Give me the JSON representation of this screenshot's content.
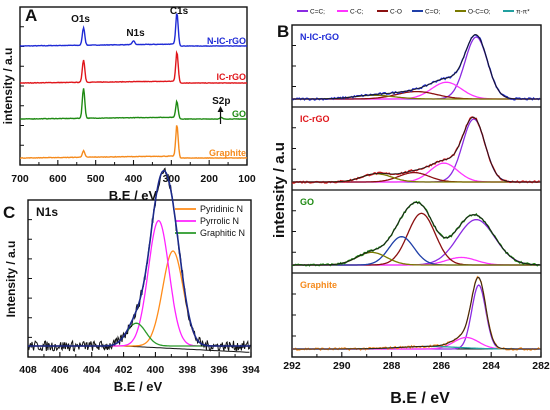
{
  "colors": {
    "N-IC-rGO": "#1f2bd6",
    "IC-rGO": "#e0161b",
    "GO": "#1e8a12",
    "Graphite": "#f58a1c",
    "C=C": "#8a2be2",
    "C-C": "#ff34ff",
    "C-O": "#8b1010",
    "C=O": "#1f3fa8",
    "O-C=O": "#7a7a00",
    "pi": "#22a0a0",
    "Pyridinic N": "#ff8c1a",
    "Pyrrolic N": "#ff22ff",
    "Graphitic N": "#2a9a2a"
  },
  "chart_data": [
    {
      "panel": "A",
      "type": "line",
      "panel_label": "A",
      "xlabel": "B.E / eV",
      "ylabel": "intensity / a.u",
      "xlim": [
        700,
        100
      ],
      "x_ticks": [
        "700",
        "600",
        "500",
        "400",
        "300",
        "200",
        "100"
      ],
      "annotations": [
        "O1s",
        "N1s",
        "C1s",
        "S2p"
      ],
      "series": [
        {
          "name": "N-IC-rGO",
          "peaks": [
            {
              "x": 532,
              "h": 0.55
            },
            {
              "x": 400,
              "h": 0.12
            },
            {
              "x": 285,
              "h": 1.0
            }
          ]
        },
        {
          "name": "IC-rGO",
          "peaks": [
            {
              "x": 532,
              "h": 0.75
            },
            {
              "x": 285,
              "h": 1.0
            }
          ]
        },
        {
          "name": "GO",
          "peaks": [
            {
              "x": 532,
              "h": 1.0
            },
            {
              "x": 285,
              "h": 0.55
            },
            {
              "x": 168,
              "h": 0.05
            }
          ]
        },
        {
          "name": "Graphite",
          "peaks": [
            {
              "x": 532,
              "h": 0.2
            },
            {
              "x": 285,
              "h": 1.0
            }
          ]
        }
      ]
    },
    {
      "panel": "B",
      "type": "line",
      "panel_label": "B",
      "xlabel": "B.E / eV",
      "ylabel": "intensity / a.u",
      "xlim": [
        292,
        282
      ],
      "x_ticks": [
        "292",
        "290",
        "288",
        "286",
        "284",
        "282"
      ],
      "legend": [
        "C=C;",
        "C-C;",
        "C-O",
        "C=O;",
        "O-C=O;",
        "π-π*"
      ],
      "legend_position": "top",
      "subplots": [
        {
          "name": "N-IC-rGO",
          "components": [
            {
              "name": "C=C",
              "center": 284.6,
              "height": 1.0,
              "width": 0.45
            },
            {
              "name": "C-C",
              "center": 285.8,
              "height": 0.27,
              "width": 0.6
            },
            {
              "name": "C-O",
              "center": 287.0,
              "height": 0.12,
              "width": 0.8
            },
            {
              "name": "O-C=O",
              "center": 288.7,
              "height": 0.06,
              "width": 0.8
            }
          ]
        },
        {
          "name": "IC-rGO",
          "components": [
            {
              "name": "C=C",
              "center": 284.7,
              "height": 1.0,
              "width": 0.45
            },
            {
              "name": "C-C",
              "center": 285.9,
              "height": 0.3,
              "width": 0.55
            },
            {
              "name": "C-O",
              "center": 287.1,
              "height": 0.15,
              "width": 0.6
            },
            {
              "name": "O-C=O",
              "center": 288.6,
              "height": 0.13,
              "width": 0.6
            }
          ]
        },
        {
          "name": "GO",
          "components": [
            {
              "name": "C=C",
              "center": 284.6,
              "height": 0.72,
              "width": 0.75
            },
            {
              "name": "C-C",
              "center": 285.2,
              "height": 0.12,
              "width": 0.6
            },
            {
              "name": "C-O",
              "center": 286.8,
              "height": 0.82,
              "width": 0.55
            },
            {
              "name": "C=O",
              "center": 287.6,
              "height": 0.45,
              "width": 0.5
            },
            {
              "name": "O-C=O",
              "center": 288.8,
              "height": 0.2,
              "width": 0.6
            }
          ]
        },
        {
          "name": "Graphite",
          "components": [
            {
              "name": "C=C",
              "center": 284.5,
              "height": 1.0,
              "width": 0.28
            },
            {
              "name": "C-C",
              "center": 285.0,
              "height": 0.18,
              "width": 0.5
            },
            {
              "name": "pi",
              "center": 286.5,
              "height": 0.04,
              "width": 1.2
            }
          ]
        }
      ]
    },
    {
      "panel": "C",
      "type": "line",
      "panel_label": "C",
      "title": "N1s",
      "xlabel": "B.E / eV",
      "ylabel": "Intensity / a.u",
      "xlim": [
        408,
        394
      ],
      "x_ticks": [
        "408",
        "406",
        "404",
        "402",
        "400",
        "398",
        "396",
        "394"
      ],
      "legend": [
        "Pyridinic N",
        "Pyrrolic N",
        "Graphitic N"
      ],
      "legend_position": "top-right",
      "components": [
        {
          "name": "Pyridinic N",
          "center": 398.9,
          "height": 0.5,
          "width": 0.65
        },
        {
          "name": "Pyrrolic N",
          "center": 399.8,
          "height": 0.66,
          "width": 0.65
        },
        {
          "name": "Graphitic N",
          "center": 401.2,
          "height": 0.12,
          "width": 0.6
        }
      ]
    }
  ]
}
